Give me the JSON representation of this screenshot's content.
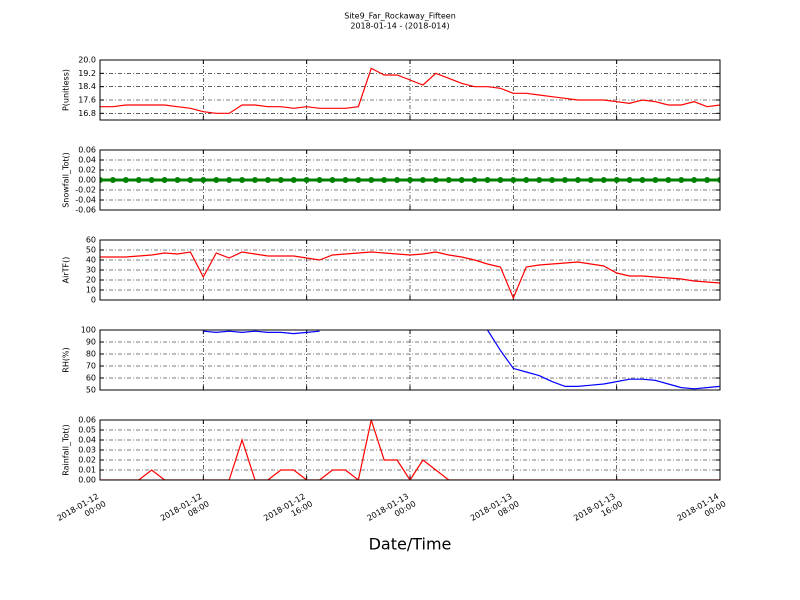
{
  "title": "Site9_Far_Rockaway_Fifteen",
  "subtitle": "2018-01-14 - (2018-014)",
  "xlabel": "Date/Time",
  "x": [
    "2018-01-12 00:00",
    "2018-01-12 01:00",
    "2018-01-12 02:00",
    "2018-01-12 03:00",
    "2018-01-12 04:00",
    "2018-01-12 05:00",
    "2018-01-12 06:00",
    "2018-01-12 07:00",
    "2018-01-12 08:00",
    "2018-01-12 09:00",
    "2018-01-12 10:00",
    "2018-01-12 11:00",
    "2018-01-12 12:00",
    "2018-01-12 13:00",
    "2018-01-12 14:00",
    "2018-01-12 15:00",
    "2018-01-12 16:00",
    "2018-01-12 17:00",
    "2018-01-12 18:00",
    "2018-01-12 19:00",
    "2018-01-12 20:00",
    "2018-01-12 21:00",
    "2018-01-12 22:00",
    "2018-01-12 23:00",
    "2018-01-13 00:00",
    "2018-01-13 01:00",
    "2018-01-13 02:00",
    "2018-01-13 03:00",
    "2018-01-13 04:00",
    "2018-01-13 05:00",
    "2018-01-13 06:00",
    "2018-01-13 07:00",
    "2018-01-13 08:00",
    "2018-01-13 09:00",
    "2018-01-13 10:00",
    "2018-01-13 11:00",
    "2018-01-13 12:00",
    "2018-01-13 13:00",
    "2018-01-13 14:00",
    "2018-01-13 15:00",
    "2018-01-13 16:00",
    "2018-01-13 17:00",
    "2018-01-13 18:00",
    "2018-01-13 19:00",
    "2018-01-13 20:00",
    "2018-01-13 21:00",
    "2018-01-13 22:00",
    "2018-01-13 23:00",
    "2018-01-14 00:00"
  ],
  "xlim": [
    "2018-01-12 00:00",
    "2018-01-14 00:00"
  ],
  "xticks": [
    "2018-01-12 00:00",
    "2018-01-12 08:00",
    "2018-01-12 16:00",
    "2018-01-13 00:00",
    "2018-01-13 08:00",
    "2018-01-13 16:00",
    "2018-01-14 00:00"
  ],
  "grid": true,
  "chart_data": [
    {
      "type": "line",
      "ylabel": "P(unitless)",
      "color": "#ff0000",
      "ylim": [
        16.4,
        20.0
      ],
      "yticks": [
        16.8,
        17.6,
        18.4,
        19.2,
        {
          "value": 20,
          "label": "20.0"
        }
      ],
      "values": [
        17.2,
        17.2,
        17.3,
        17.3,
        17.3,
        17.3,
        17.2,
        17.1,
        16.9,
        16.8,
        16.8,
        17.3,
        17.3,
        17.2,
        17.2,
        17.1,
        17.2,
        17.1,
        17.1,
        17.1,
        17.2,
        19.5,
        19.1,
        19.1,
        18.8,
        18.5,
        19.2,
        18.9,
        18.6,
        18.4,
        18.4,
        18.3,
        18.0,
        18.0,
        17.9,
        17.8,
        17.7,
        17.6,
        17.6,
        17.6,
        17.5,
        17.4,
        17.6,
        17.5,
        17.3,
        17.3,
        17.5,
        17.2,
        17.3
      ]
    },
    {
      "type": "line",
      "ylabel": "Snowfall_Tot()",
      "color": "#008000",
      "marker": "o",
      "ylim": [
        -0.06,
        0.06
      ],
      "yticks": [
        -0.06,
        -0.04,
        -0.02,
        {
          "value": 0,
          "label": "0.00"
        },
        0.02,
        0.04,
        0.06
      ],
      "values": [
        0,
        0,
        0,
        0,
        0,
        0,
        0,
        0,
        0,
        0,
        0,
        0,
        0,
        0,
        0,
        0,
        0,
        0,
        0,
        0,
        0,
        0,
        0,
        0,
        0,
        0,
        0,
        0,
        0,
        0,
        0,
        0,
        0,
        0,
        0,
        0,
        0,
        0,
        0,
        0,
        0,
        0,
        0,
        0,
        0,
        0,
        0,
        0,
        0
      ]
    },
    {
      "type": "line",
      "ylabel": "AirTF()",
      "color": "#ff0000",
      "ylim": [
        0,
        60
      ],
      "yticks": [
        0,
        10,
        20,
        30,
        40,
        50,
        60
      ],
      "values": [
        43,
        43,
        43,
        44,
        45,
        47,
        46,
        48,
        23,
        47,
        42,
        48,
        46,
        44,
        44,
        44,
        42,
        40,
        45,
        46,
        47,
        48,
        47,
        46,
        45,
        46,
        48,
        45,
        43,
        40,
        36,
        33,
        2,
        33,
        35,
        36,
        37,
        38,
        36,
        34,
        27,
        24,
        24,
        23,
        22,
        21,
        19,
        18,
        17
      ]
    },
    {
      "type": "line",
      "ylabel": "RH(%)",
      "color": "#0000ff",
      "ylim": [
        50,
        100
      ],
      "yticks": [
        50,
        60,
        70,
        80,
        90,
        100
      ],
      "values": [
        null,
        null,
        null,
        null,
        null,
        null,
        null,
        null,
        99,
        98,
        99,
        98,
        99,
        98,
        98,
        97,
        98,
        99,
        null,
        null,
        null,
        null,
        null,
        null,
        null,
        null,
        null,
        null,
        null,
        null,
        100,
        83,
        68,
        65,
        62,
        57,
        53,
        53,
        54,
        55,
        57,
        59,
        59,
        58,
        55,
        52,
        51,
        52,
        53
      ]
    },
    {
      "type": "line",
      "ylabel": "Rainfall_Tot()",
      "color": "#ff0000",
      "ylim": [
        0,
        0.06
      ],
      "yticks": [
        {
          "value": 0,
          "label": "0.00"
        },
        0.01,
        0.02,
        0.03,
        0.04,
        0.05,
        0.06
      ],
      "values": [
        0,
        0,
        0,
        0,
        0.01,
        0,
        0,
        0,
        0,
        0,
        0,
        0.04,
        0,
        0,
        0.01,
        0.01,
        0,
        0,
        0.01,
        0.01,
        0,
        0.06,
        0.02,
        0.02,
        0,
        0.02,
        0.01,
        0,
        0,
        0,
        0,
        0,
        0,
        0,
        0,
        0,
        0,
        0,
        0,
        0,
        0,
        0,
        0,
        0,
        0,
        0,
        0,
        0,
        0
      ]
    }
  ]
}
